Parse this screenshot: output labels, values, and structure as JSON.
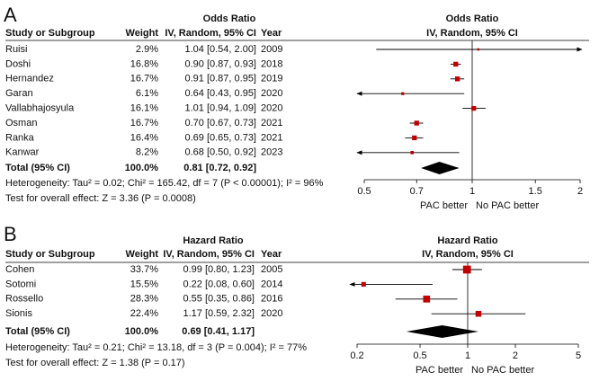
{
  "chart_data": [
    {
      "type": "forest",
      "panel_label": "A",
      "study_header": "Study or Subgroup",
      "weight_header": "Weight",
      "effect_header": "Odds Ratio",
      "effect_subheader": "IV, Random, 95% CI",
      "year_header": "Year",
      "plot_title": "Odds Ratio",
      "plot_subtitle": "IV, Random, 95% CI",
      "studies": [
        {
          "name": "Ruisi",
          "weight": 2.9,
          "weight_label": "2.9%",
          "estimate": 1.04,
          "lower": 0.54,
          "upper": 2.0,
          "ci_label": "1.04 [0.54, 2.00]",
          "year": "2009"
        },
        {
          "name": "Doshi",
          "weight": 16.8,
          "weight_label": "16.8%",
          "estimate": 0.9,
          "lower": 0.87,
          "upper": 0.93,
          "ci_label": "0.90 [0.87, 0.93]",
          "year": "2018"
        },
        {
          "name": "Hernandez",
          "weight": 16.7,
          "weight_label": "16.7%",
          "estimate": 0.91,
          "lower": 0.87,
          "upper": 0.95,
          "ci_label": "0.91 [0.87, 0.95]",
          "year": "2019"
        },
        {
          "name": "Garan",
          "weight": 6.1,
          "weight_label": "6.1%",
          "estimate": 0.64,
          "lower": 0.43,
          "upper": 0.95,
          "ci_label": "0.64 [0.43, 0.95]",
          "year": "2020"
        },
        {
          "name": "Vallabhajosyula",
          "weight": 16.1,
          "weight_label": "16.1%",
          "estimate": 1.01,
          "lower": 0.94,
          "upper": 1.09,
          "ci_label": "1.01 [0.94, 1.09]",
          "year": "2020"
        },
        {
          "name": "Osman",
          "weight": 16.7,
          "weight_label": "16.7%",
          "estimate": 0.7,
          "lower": 0.67,
          "upper": 0.73,
          "ci_label": "0.70 [0.67, 0.73]",
          "year": "2021"
        },
        {
          "name": "Ranka",
          "weight": 16.4,
          "weight_label": "16.4%",
          "estimate": 0.69,
          "lower": 0.65,
          "upper": 0.73,
          "ci_label": "0.69 [0.65, 0.73]",
          "year": "2021"
        },
        {
          "name": "Kanwar",
          "weight": 8.2,
          "weight_label": "8.2%",
          "estimate": 0.68,
          "lower": 0.5,
          "upper": 0.92,
          "ci_label": "0.68 [0.50, 0.92]",
          "year": "2023"
        }
      ],
      "total": {
        "name": "Total (95% CI)",
        "weight": 100.0,
        "weight_label": "100.0%",
        "estimate": 0.81,
        "lower": 0.72,
        "upper": 0.92,
        "ci_label": "0.81 [0.72, 0.92]"
      },
      "heterogeneity": "Heterogeneity: Tau² = 0.02; Chi² = 165.42, df = 7 (P < 0.00001); I² = 96%",
      "overall_effect": "Test for overall effect: Z = 3.36 (P = 0.0008)",
      "log_scale": true,
      "xlim": [
        0.5,
        2
      ],
      "xticks": [
        0.5,
        0.7,
        1,
        1.5,
        2
      ],
      "null_value": 1,
      "left_label": "PAC better",
      "right_label": "No PAC better",
      "color": "#c00000"
    },
    {
      "type": "forest",
      "panel_label": "B",
      "study_header": "Study or Subgroup",
      "weight_header": "Weight",
      "effect_header": "Hazard Ratio",
      "effect_subheader": "IV, Random, 95% CI",
      "year_header": "Year",
      "plot_title": "Hazard Ratio",
      "plot_subtitle": "IV, Random, 95% CI",
      "studies": [
        {
          "name": "Cohen",
          "weight": 33.7,
          "weight_label": "33.7%",
          "estimate": 0.99,
          "lower": 0.8,
          "upper": 1.23,
          "ci_label": "0.99 [0.80, 1.23]",
          "year": "2005"
        },
        {
          "name": "Sotomi",
          "weight": 15.5,
          "weight_label": "15.5%",
          "estimate": 0.22,
          "lower": 0.08,
          "upper": 0.6,
          "ci_label": "0.22 [0.08, 0.60]",
          "year": "2014"
        },
        {
          "name": "Rossello",
          "weight": 28.3,
          "weight_label": "28.3%",
          "estimate": 0.55,
          "lower": 0.35,
          "upper": 0.86,
          "ci_label": "0.55 [0.35, 0.86]",
          "year": "2016"
        },
        {
          "name": "Sionis",
          "weight": 22.4,
          "weight_label": "22.4%",
          "estimate": 1.17,
          "lower": 0.59,
          "upper": 2.32,
          "ci_label": "1.17 [0.59, 2.32]",
          "year": "2020"
        }
      ],
      "total": {
        "name": "Total (95% CI)",
        "weight": 100.0,
        "weight_label": "100.0%",
        "estimate": 0.69,
        "lower": 0.41,
        "upper": 1.17,
        "ci_label": "0.69 [0.41, 1.17]"
      },
      "heterogeneity": "Heterogeneity: Tau² = 0.21; Chi² = 13.18, df = 3 (P = 0.004); I² = 77%",
      "overall_effect": "Test for overall effect: Z = 1.38 (P = 0.17)",
      "log_scale": true,
      "xlim": [
        0.2,
        5
      ],
      "xticks": [
        0.2,
        0.5,
        1,
        2,
        5
      ],
      "null_value": 1,
      "left_label": "PAC better",
      "right_label": "No PAC better",
      "color": "#c00000"
    }
  ]
}
